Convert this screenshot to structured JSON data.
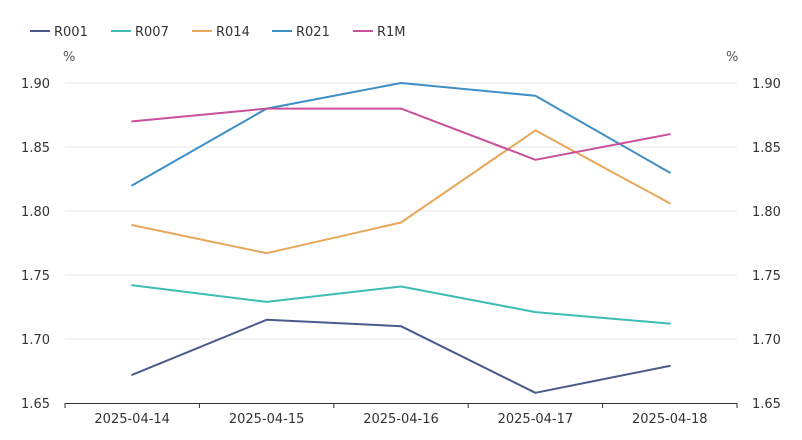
{
  "chart_data": {
    "type": "line",
    "title": "",
    "xlabel": "",
    "ylabel": "%",
    "y2label": "%",
    "ylim": [
      1.65,
      1.9
    ],
    "yticks": [
      "1.65",
      "1.70",
      "1.75",
      "1.80",
      "1.85",
      "1.90"
    ],
    "ytick_values": [
      1.65,
      1.7,
      1.75,
      1.8,
      1.85,
      1.9
    ],
    "categories": [
      "2025-04-14",
      "2025-04-15",
      "2025-04-16",
      "2025-04-17",
      "2025-04-18"
    ],
    "grid": true,
    "legend_position": "top-left",
    "series": [
      {
        "name": "R001",
        "color": "#4b5a8c",
        "values": [
          1.672,
          1.715,
          1.71,
          1.658,
          1.679
        ]
      },
      {
        "name": "R007",
        "color": "#3dbdb5",
        "values": [
          1.742,
          1.729,
          1.741,
          1.721,
          1.712
        ]
      },
      {
        "name": "R014",
        "color": "#e8a75a",
        "values": [
          1.789,
          1.767,
          1.791,
          1.863,
          1.806
        ]
      },
      {
        "name": "R021",
        "color": "#3f8fc7",
        "values": [
          1.82,
          1.88,
          1.9,
          1.89,
          1.83
        ]
      },
      {
        "name": "R1M",
        "color": "#c8509c",
        "values": [
          1.87,
          1.88,
          1.88,
          1.84,
          1.86
        ]
      }
    ]
  }
}
